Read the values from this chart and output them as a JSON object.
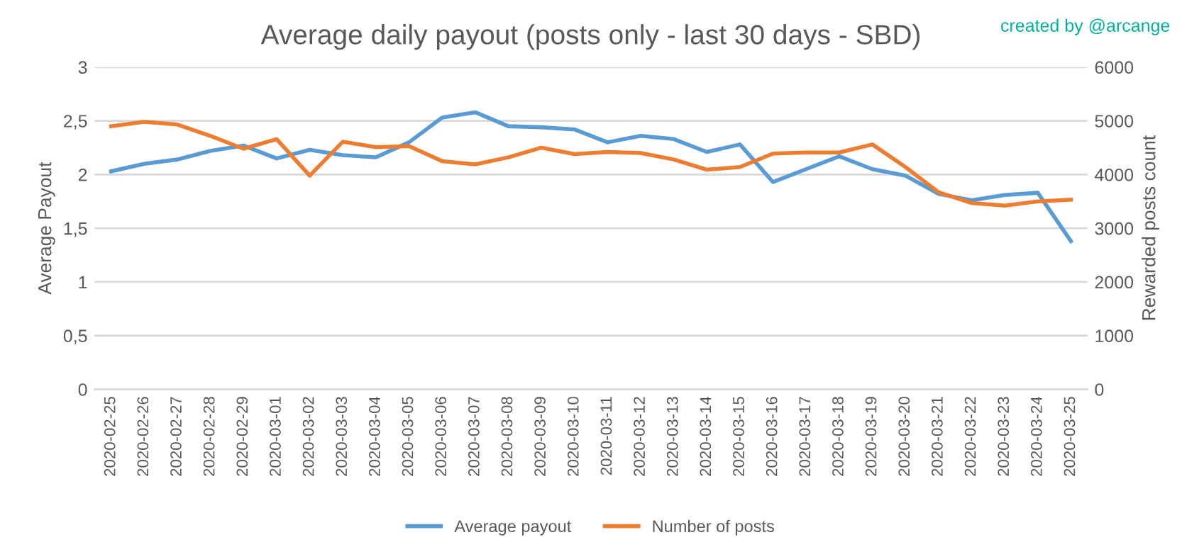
{
  "chart_data": {
    "type": "line",
    "title": "Average daily payout (posts only - last 30 days - SBD)",
    "ylabel": "Average Payout",
    "y2label": "Rewarded posts count",
    "annotations": [
      "created by @arcange"
    ],
    "categories": [
      "2020-02-25",
      "2020-02-26",
      "2020-02-27",
      "2020-02-28",
      "2020-02-29",
      "2020-03-01",
      "2020-03-02",
      "2020-03-03",
      "2020-03-04",
      "2020-03-05",
      "2020-03-06",
      "2020-03-07",
      "2020-03-08",
      "2020-03-09",
      "2020-03-10",
      "2020-03-11",
      "2020-03-12",
      "2020-03-13",
      "2020-03-14",
      "2020-03-15",
      "2020-03-16",
      "2020-03-17",
      "2020-03-18",
      "2020-03-19",
      "2020-03-20",
      "2020-03-21",
      "2020-03-22",
      "2020-03-23",
      "2020-03-24",
      "2020-03-25"
    ],
    "series": [
      {
        "name": "Average payout",
        "color": "#5b9bd5",
        "values": [
          2.03,
          2.1,
          2.14,
          2.22,
          2.27,
          2.15,
          2.23,
          2.18,
          2.16,
          2.3,
          2.53,
          2.58,
          2.45,
          2.44,
          2.42,
          2.3,
          2.36,
          2.33,
          2.21,
          2.28,
          1.93,
          2.05,
          2.17,
          2.05,
          1.99,
          1.82,
          1.76,
          1.81,
          1.83,
          1.38
        ]
      },
      {
        "name": "Number of posts",
        "color": "#ed7d31",
        "axis": "y2",
        "values": [
          4900,
          4980,
          4930,
          4720,
          4480,
          4660,
          3980,
          4610,
          4510,
          4530,
          4250,
          4190,
          4320,
          4500,
          4380,
          4420,
          4400,
          4280,
          4090,
          4140,
          4390,
          4410,
          4410,
          4560,
          4140,
          3670,
          3470,
          3420,
          3500,
          3530
        ]
      }
    ],
    "ylim": [
      0,
      3
    ],
    "yticks": [
      0,
      {
        "value": 0.5,
        "label": "0,5"
      },
      1,
      {
        "value": 1.5,
        "label": "1,5"
      },
      2,
      {
        "value": 2.5,
        "label": "2,5"
      },
      3
    ],
    "y2lim": [
      0,
      6000
    ],
    "y2ticks": [
      0,
      1000,
      2000,
      3000,
      4000,
      5000,
      6000
    ],
    "grid": "y",
    "legend": "bottom",
    "marker": "none",
    "line_style": "solid"
  }
}
